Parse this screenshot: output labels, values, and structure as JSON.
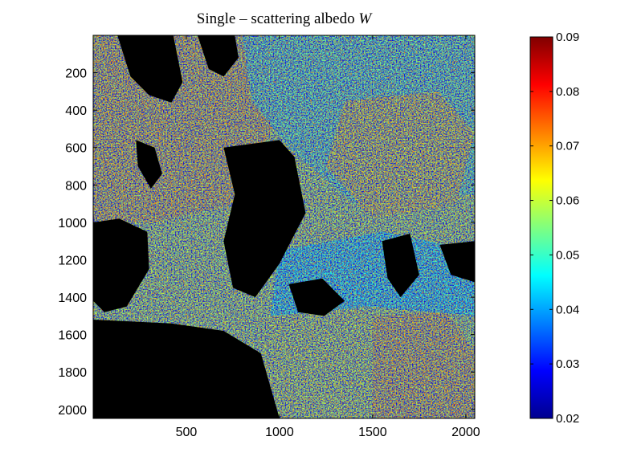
{
  "chart_data": {
    "type": "heatmap",
    "title": "Single – scattering albedo",
    "title_symbol": "W",
    "xlabel": "",
    "ylabel": "",
    "xlim": [
      0,
      2048
    ],
    "ylim": [
      2048,
      0
    ],
    "x_ticks": [
      500,
      1000,
      1500,
      2000
    ],
    "y_ticks": [
      200,
      400,
      600,
      800,
      1000,
      1200,
      1400,
      1600,
      1800,
      2000
    ],
    "colorbar": {
      "colormap": "jet",
      "clim": [
        0.02,
        0.09
      ],
      "ticks": [
        "0.02",
        "0.03",
        "0.04",
        "0.05",
        "0.06",
        "0.07",
        "0.08",
        "0.09"
      ]
    },
    "background_color": "#000000",
    "masked_regions": [
      {
        "name": "central-shadow",
        "polygon_data": [
          [
            700,
            600
          ],
          [
            1000,
            560
          ],
          [
            1080,
            650
          ],
          [
            1140,
            950
          ],
          [
            1000,
            1220
          ],
          [
            870,
            1400
          ],
          [
            750,
            1350
          ],
          [
            700,
            1100
          ],
          [
            760,
            850
          ]
        ]
      },
      {
        "name": "lower-left-shadow",
        "polygon_data": [
          [
            0,
            1520
          ],
          [
            420,
            1540
          ],
          [
            700,
            1580
          ],
          [
            900,
            1700
          ],
          [
            1000,
            2048
          ],
          [
            0,
            2048
          ]
        ]
      },
      {
        "name": "upper-left-shadow",
        "polygon_data": [
          [
            130,
            0
          ],
          [
            430,
            0
          ],
          [
            480,
            250
          ],
          [
            420,
            360
          ],
          [
            300,
            320
          ],
          [
            200,
            220
          ]
        ]
      },
      {
        "name": "mid-left-shadow",
        "polygon_data": [
          [
            230,
            560
          ],
          [
            330,
            600
          ],
          [
            370,
            740
          ],
          [
            310,
            820
          ],
          [
            240,
            700
          ]
        ]
      },
      {
        "name": "left-column-shadow",
        "polygon_data": [
          [
            0,
            1000
          ],
          [
            140,
            980
          ],
          [
            290,
            1050
          ],
          [
            300,
            1250
          ],
          [
            180,
            1450
          ],
          [
            60,
            1480
          ],
          [
            0,
            1420
          ]
        ]
      },
      {
        "name": "upper-gap",
        "polygon_data": [
          [
            560,
            0
          ],
          [
            760,
            0
          ],
          [
            780,
            120
          ],
          [
            700,
            220
          ],
          [
            620,
            180
          ]
        ]
      },
      {
        "name": "right-shadow",
        "polygon_data": [
          [
            1550,
            1100
          ],
          [
            1700,
            1060
          ],
          [
            1750,
            1280
          ],
          [
            1650,
            1400
          ],
          [
            1580,
            1300
          ]
        ]
      },
      {
        "name": "center-right-shadow",
        "polygon_data": [
          [
            1050,
            1330
          ],
          [
            1230,
            1300
          ],
          [
            1350,
            1420
          ],
          [
            1240,
            1500
          ],
          [
            1100,
            1480
          ]
        ]
      },
      {
        "name": "far-right-shadow",
        "polygon_data": [
          [
            1860,
            1120
          ],
          [
            2048,
            1100
          ],
          [
            2048,
            1320
          ],
          [
            1920,
            1280
          ]
        ]
      }
    ],
    "value_zones": [
      {
        "region": "upper-left",
        "polygon_data": [
          [
            0,
            0
          ],
          [
            900,
            0
          ],
          [
            980,
            450
          ],
          [
            780,
            900
          ],
          [
            330,
            1000
          ],
          [
            0,
            1000
          ]
        ],
        "value": 0.068
      },
      {
        "region": "top-right",
        "polygon_data": [
          [
            800,
            0
          ],
          [
            2048,
            0
          ],
          [
            2048,
            850
          ],
          [
            1400,
            900
          ],
          [
            1050,
            600
          ],
          [
            850,
            350
          ]
        ],
        "value": 0.052
      },
      {
        "region": "center-right-orange",
        "polygon_data": [
          [
            1350,
            350
          ],
          [
            1850,
            300
          ],
          [
            2048,
            520
          ],
          [
            1950,
            900
          ],
          [
            1500,
            980
          ],
          [
            1250,
            700
          ]
        ],
        "value": 0.066
      },
      {
        "region": "bottom-center-yellow",
        "polygon_data": [
          [
            900,
            1480
          ],
          [
            1400,
            1440
          ],
          [
            1600,
            1600
          ],
          [
            1520,
            2048
          ],
          [
            950,
            2048
          ]
        ],
        "value": 0.061
      },
      {
        "region": "bottom-right-orange",
        "polygon_data": [
          [
            1500,
            1500
          ],
          [
            1900,
            1480
          ],
          [
            2048,
            1700
          ],
          [
            2048,
            2048
          ],
          [
            1500,
            2048
          ]
        ],
        "value": 0.068
      },
      {
        "region": "middle-band",
        "polygon_data": [
          [
            1000,
            1150
          ],
          [
            1550,
            1050
          ],
          [
            2048,
            1150
          ],
          [
            2048,
            1500
          ],
          [
            1500,
            1450
          ],
          [
            950,
            1500
          ]
        ],
        "value": 0.046
      }
    ]
  }
}
